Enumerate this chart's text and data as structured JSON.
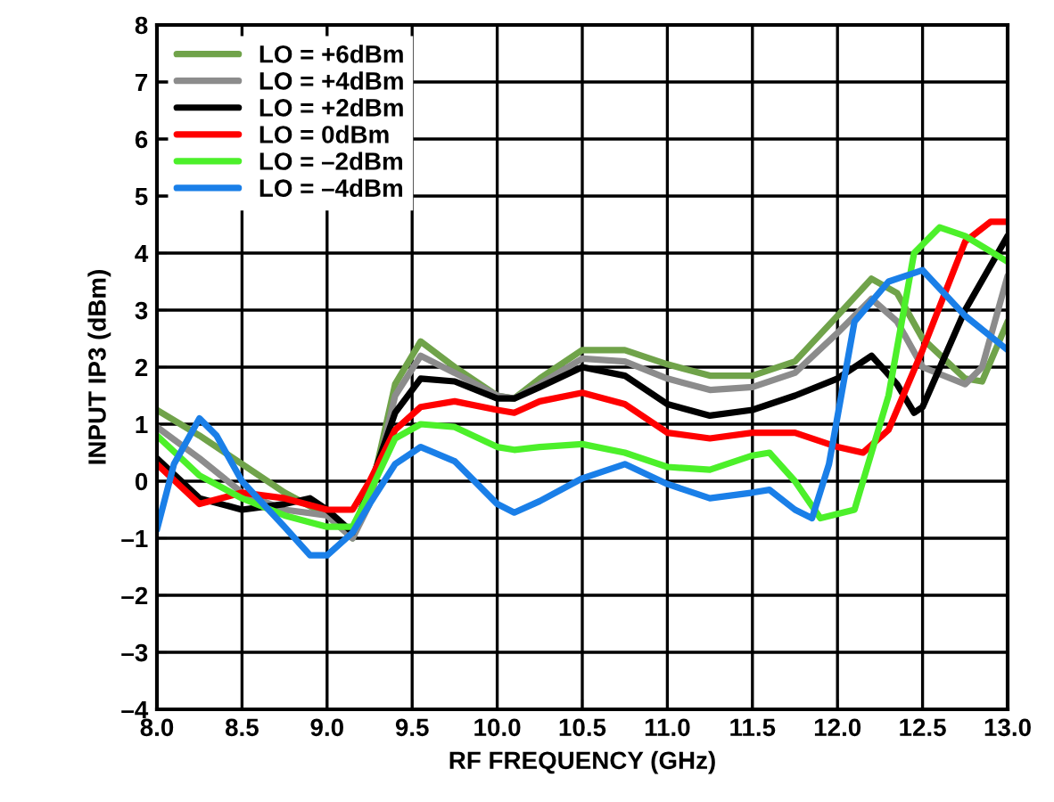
{
  "chart_data": {
    "type": "line",
    "xlabel": "RF FREQUENCY (GHz)",
    "ylabel": "INPUT IP3 (dBm)",
    "xlim": [
      8.0,
      13.0
    ],
    "ylim": [
      -4,
      8
    ],
    "xticks": [
      {
        "value": 8.0,
        "label": "8.0"
      },
      {
        "value": 8.5,
        "label": "8.5"
      },
      {
        "value": 9.0,
        "label": "9.0"
      },
      {
        "value": 9.5,
        "label": "9.5"
      },
      {
        "value": 10.0,
        "label": "10.0"
      },
      {
        "value": 10.5,
        "label": "10.5"
      },
      {
        "value": 11.0,
        "label": "11.0"
      },
      {
        "value": 11.5,
        "label": "11.5"
      },
      {
        "value": 12.0,
        "label": "12.0"
      },
      {
        "value": 12.5,
        "label": "12.5"
      },
      {
        "value": 13.0,
        "label": "13.0"
      }
    ],
    "yticks": [
      {
        "value": -4,
        "label": "–4"
      },
      {
        "value": -3,
        "label": "–3"
      },
      {
        "value": -2,
        "label": "–2"
      },
      {
        "value": -1,
        "label": "–1"
      },
      0,
      1,
      2,
      3,
      4,
      5,
      6,
      7,
      8
    ],
    "grid": true,
    "legend": "top left",
    "line_style": "solid",
    "marker": "none",
    "series": [
      {
        "name": "LO = +6dBm",
        "color": "#70a34a",
        "x": [
          8.0,
          8.25,
          8.5,
          8.75,
          9.0,
          9.15,
          9.25,
          9.4,
          9.55,
          9.75,
          10.0,
          10.1,
          10.25,
          10.5,
          10.75,
          11.0,
          11.25,
          11.5,
          11.75,
          12.0,
          12.2,
          12.35,
          12.5,
          12.75,
          12.85,
          13.0
        ],
        "values": [
          1.25,
          0.8,
          0.3,
          -0.2,
          -0.6,
          -1.0,
          -0.3,
          1.7,
          2.45,
          2.0,
          1.5,
          1.45,
          1.8,
          2.3,
          2.3,
          2.05,
          1.85,
          1.85,
          2.1,
          2.9,
          3.55,
          3.3,
          2.5,
          1.8,
          1.75,
          2.8
        ]
      },
      {
        "name": "LO = +4dBm",
        "color": "#8c8c8c",
        "x": [
          8.0,
          8.25,
          8.5,
          8.75,
          9.0,
          9.15,
          9.25,
          9.4,
          9.55,
          9.75,
          10.0,
          10.1,
          10.25,
          10.5,
          10.75,
          11.0,
          11.25,
          11.5,
          11.75,
          12.0,
          12.2,
          12.35,
          12.5,
          12.75,
          12.85,
          13.0
        ],
        "values": [
          0.95,
          0.4,
          -0.2,
          -0.5,
          -0.6,
          -1.0,
          -0.4,
          1.5,
          2.2,
          1.9,
          1.5,
          1.45,
          1.7,
          2.15,
          2.1,
          1.8,
          1.6,
          1.65,
          1.9,
          2.6,
          3.2,
          2.8,
          2.0,
          1.7,
          2.0,
          3.6
        ]
      },
      {
        "name": "LO = +2dBm",
        "color": "#000000",
        "x": [
          8.0,
          8.25,
          8.5,
          8.75,
          8.9,
          9.0,
          9.15,
          9.25,
          9.4,
          9.55,
          9.75,
          10.0,
          10.1,
          10.25,
          10.5,
          10.75,
          11.0,
          11.25,
          11.5,
          11.75,
          12.0,
          12.2,
          12.35,
          12.45,
          12.5,
          12.75,
          13.0
        ],
        "values": [
          0.4,
          -0.3,
          -0.5,
          -0.4,
          -0.3,
          -0.5,
          -0.9,
          -0.1,
          1.2,
          1.8,
          1.75,
          1.45,
          1.45,
          1.65,
          2.0,
          1.85,
          1.35,
          1.15,
          1.25,
          1.5,
          1.8,
          2.2,
          1.7,
          1.2,
          1.3,
          3.0,
          4.3
        ]
      },
      {
        "name": "LO = 0dBm",
        "color": "#ff0000",
        "x": [
          8.0,
          8.25,
          8.5,
          8.75,
          9.0,
          9.15,
          9.25,
          9.4,
          9.55,
          9.75,
          10.0,
          10.1,
          10.25,
          10.5,
          10.75,
          11.0,
          11.25,
          11.5,
          11.75,
          12.0,
          12.15,
          12.3,
          12.5,
          12.75,
          12.9,
          13.0
        ],
        "values": [
          0.3,
          -0.4,
          -0.2,
          -0.3,
          -0.5,
          -0.5,
          0.0,
          0.9,
          1.3,
          1.4,
          1.25,
          1.2,
          1.4,
          1.55,
          1.35,
          0.85,
          0.75,
          0.85,
          0.85,
          0.6,
          0.5,
          0.9,
          2.3,
          4.2,
          4.55,
          4.55
        ]
      },
      {
        "name": "LO = –2dBm",
        "color": "#4cf02a",
        "x": [
          8.0,
          8.25,
          8.5,
          8.75,
          9.0,
          9.15,
          9.25,
          9.4,
          9.55,
          9.75,
          10.0,
          10.1,
          10.25,
          10.5,
          10.75,
          11.0,
          11.25,
          11.5,
          11.6,
          11.75,
          11.9,
          12.1,
          12.3,
          12.45,
          12.6,
          12.75,
          13.0
        ],
        "values": [
          0.8,
          0.1,
          -0.3,
          -0.6,
          -0.8,
          -0.8,
          -0.2,
          0.75,
          1.0,
          0.95,
          0.6,
          0.55,
          0.6,
          0.65,
          0.5,
          0.25,
          0.2,
          0.45,
          0.5,
          0.0,
          -0.65,
          -0.5,
          1.5,
          4.0,
          4.45,
          4.3,
          3.85
        ]
      },
      {
        "name": "LO = –4dBm",
        "color": "#1a7fe8",
        "x": [
          8.0,
          8.1,
          8.25,
          8.35,
          8.5,
          8.75,
          8.9,
          9.0,
          9.15,
          9.25,
          9.4,
          9.55,
          9.75,
          10.0,
          10.1,
          10.25,
          10.5,
          10.75,
          11.0,
          11.25,
          11.5,
          11.6,
          11.75,
          11.85,
          11.95,
          12.1,
          12.3,
          12.5,
          12.75,
          13.0
        ],
        "values": [
          -0.85,
          0.3,
          1.1,
          0.8,
          0.0,
          -0.8,
          -1.3,
          -1.3,
          -0.9,
          -0.4,
          0.3,
          0.6,
          0.35,
          -0.4,
          -0.55,
          -0.35,
          0.05,
          0.3,
          -0.05,
          -0.3,
          -0.2,
          -0.15,
          -0.5,
          -0.65,
          0.3,
          2.8,
          3.5,
          3.7,
          2.9,
          2.3
        ]
      }
    ]
  }
}
